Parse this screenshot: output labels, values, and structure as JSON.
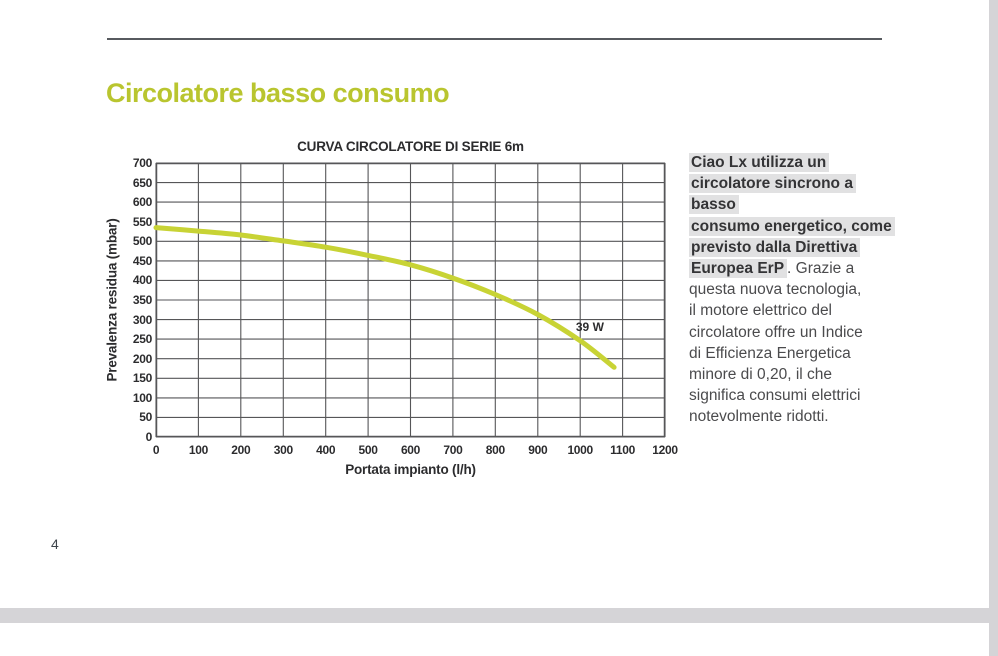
{
  "page": {
    "number": "4",
    "title": "Circolatore basso consumo",
    "colors": {
      "accent_green": "#b9c52f",
      "curve_green": "#c8d335",
      "grid_gray": "#565658",
      "highlight_gray": "#e1e1e2",
      "band_gray": "#d5d4d7",
      "rule_gray": "#575a5f",
      "chart_text": "#2c2c2e"
    }
  },
  "chart_data": {
    "type": "line",
    "title": "CURVA CIRCOLATORE DI SERIE 6m",
    "xlabel": "Portata impianto (l/h)",
    "ylabel": "Prevalenza residua (mbar)",
    "xlim": [
      0,
      1200
    ],
    "ylim": [
      0,
      700
    ],
    "x_ticks": [
      0,
      100,
      200,
      300,
      400,
      500,
      600,
      700,
      800,
      900,
      1000,
      1100,
      1200
    ],
    "y_ticks": [
      0,
      50,
      100,
      150,
      200,
      250,
      300,
      350,
      400,
      450,
      500,
      550,
      600,
      650,
      700
    ],
    "grid": true,
    "legend": "none",
    "series": [
      {
        "name": "Curva circolatore di serie 6m",
        "x": [
          0,
          100,
          200,
          300,
          400,
          500,
          600,
          700,
          800,
          900,
          1000,
          1080
        ],
        "y": [
          535,
          526,
          516,
          501,
          485,
          464,
          440,
          406,
          364,
          313,
          246,
          178
        ]
      }
    ],
    "annotation": {
      "text": "39 W",
      "x": 1023,
      "y": 280
    }
  },
  "description": {
    "highlight": "Ciao Lx utilizza un\ncircolatore sincrono a basso\nconsumo energetico, come\nprevisto dalla Direttiva\nEuropea ErP",
    "rest": ". Grazie a\nquesta nuova tecnologia,\nil motore elettrico del\ncircolatore offre un Indice\ndi Efficienza Energetica\nminore di 0,20, il che\nsignifica consumi elettrici\nnotevolmente ridotti."
  }
}
